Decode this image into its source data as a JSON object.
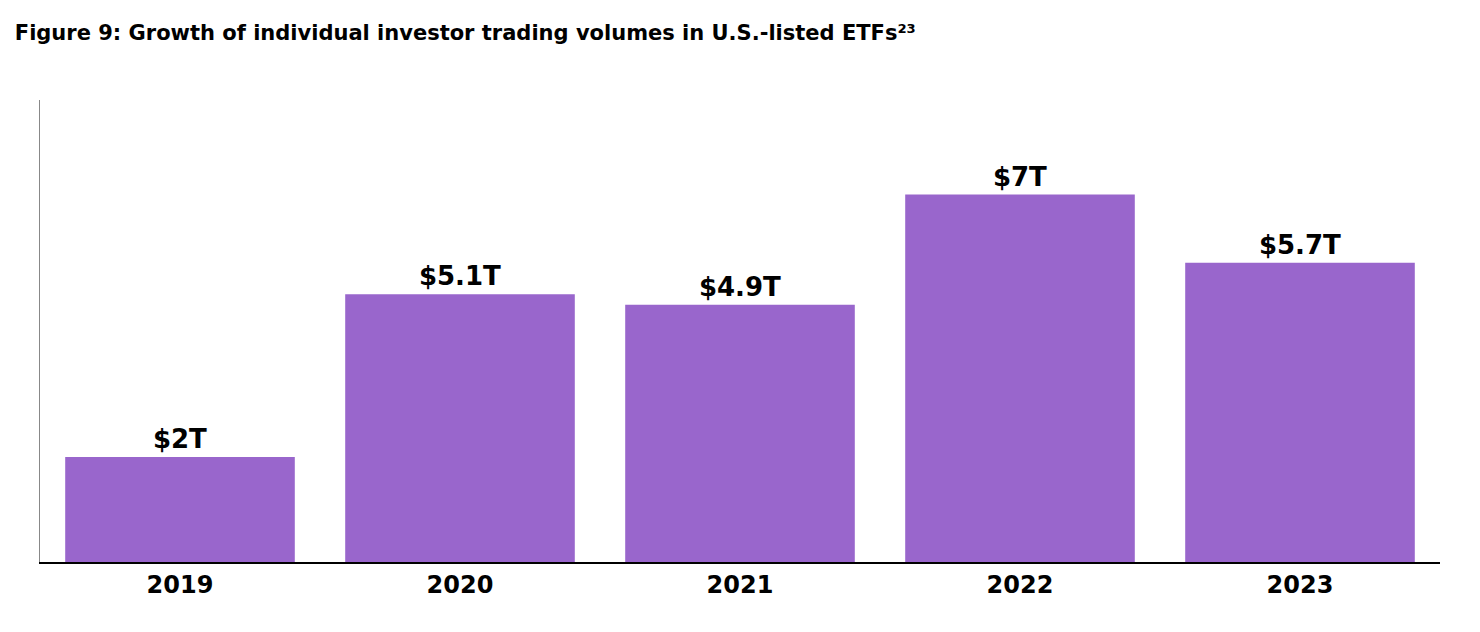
{
  "chart_data": {
    "type": "bar",
    "title": "Figure 9: Growth of individual investor trading volumes in U.S.-listed ETFs²³",
    "categories": [
      "2019",
      "2020",
      "2021",
      "2022",
      "2023"
    ],
    "values": [
      2.0,
      5.1,
      4.9,
      7.0,
      5.7
    ],
    "value_labels": [
      "$2T",
      "$5.1T",
      "$4.9T",
      "$7T",
      "$5.7T"
    ],
    "color": "#9966cc",
    "ylim": [
      0,
      8.8
    ],
    "grid": false,
    "data_labels": true,
    "tick_labels": "x"
  }
}
